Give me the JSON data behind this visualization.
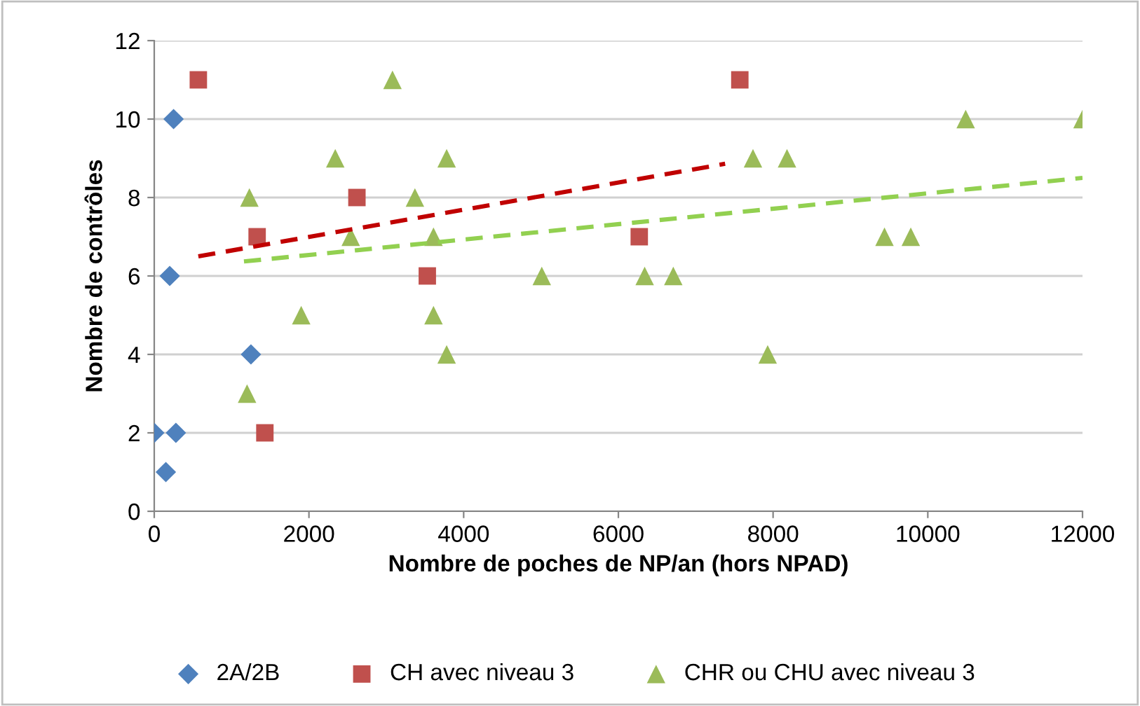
{
  "chart_data": {
    "type": "scatter",
    "xlabel": "Nombre de poches de NP/an (hors NPAD)",
    "ylabel": "Nombre de contrôles",
    "xlim": [
      0,
      12000
    ],
    "xticks": [
      0,
      2000,
      4000,
      6000,
      8000,
      10000,
      12000
    ],
    "ylim": [
      0,
      12
    ],
    "yticks": [
      0,
      2,
      4,
      6,
      8,
      10,
      12
    ],
    "grid": "y",
    "legend": "bottom",
    "series": [
      {
        "name": "2A/2B",
        "color": "#4f81bd",
        "marker": "diamond",
        "x": [
          0,
          150,
          250,
          200,
          280,
          1250
        ],
        "values": [
          2,
          1,
          10,
          6,
          2,
          4
        ]
      },
      {
        "name": "CH avec niveau 3",
        "color": "#c0504d",
        "marker": "square",
        "x": [
          570,
          1330,
          1430,
          2620,
          3530,
          6270,
          7570
        ],
        "values": [
          11,
          7,
          2,
          8,
          6,
          7,
          11
        ]
      },
      {
        "name": "CHR ou CHU avec niveau 3",
        "color": "#9bbb59",
        "marker": "triangle",
        "x": [
          1230,
          1200,
          1900,
          2340,
          2540,
          3080,
          3370,
          3610,
          3610,
          3780,
          3780,
          5010,
          6340,
          6710,
          7740,
          7930,
          8180,
          9440,
          9780,
          10490,
          12000
        ],
        "values": [
          8,
          3,
          5,
          9,
          7,
          11,
          8,
          7,
          5,
          9,
          4,
          6,
          6,
          6,
          9,
          4,
          9,
          7,
          7,
          10,
          10
        ]
      },
      {
        "type": "line",
        "color": "#c00000",
        "line_style": "dashed",
        "marker": "none",
        "x": [
          570,
          7380
        ],
        "values": [
          6.5,
          8.86
        ]
      },
      {
        "type": "line",
        "color": "#92d050",
        "line_style": "dashed",
        "marker": "none",
        "x": [
          1160,
          12000
        ],
        "values": [
          6.37,
          8.5
        ]
      }
    ]
  }
}
